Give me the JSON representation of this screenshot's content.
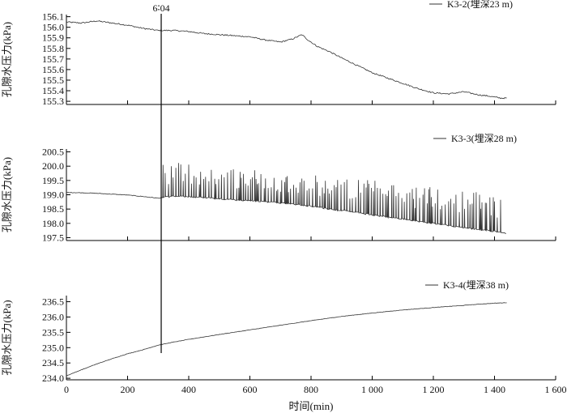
{
  "chart_data": [
    {
      "type": "line",
      "ylabel": "孔隙水压力(kPa)",
      "legend": "K3-2(埋深23 m)",
      "ylim": [
        155.27,
        156.12
      ],
      "yticks": [
        155.3,
        155.4,
        155.5,
        155.6,
        155.7,
        155.8,
        155.9,
        156.0,
        156.1
      ],
      "ytick_labels": [
        "155.3",
        "155.4",
        "155.5",
        "155.6",
        "155.7",
        "155.8",
        "155.9",
        "156.0",
        "156.1"
      ],
      "series": [
        {
          "line_color": "#333333",
          "x": [
            0,
            50,
            100,
            150,
            200,
            250,
            300,
            350,
            400,
            450,
            500,
            550,
            600,
            650,
            700,
            740,
            770,
            790,
            820,
            860,
            900,
            950,
            1000,
            1050,
            1100,
            1150,
            1200,
            1250,
            1300,
            1350,
            1380,
            1400,
            1420,
            1440
          ],
          "y": [
            156.05,
            156.04,
            156.06,
            156.04,
            156.02,
            155.99,
            155.97,
            155.97,
            155.96,
            155.94,
            155.93,
            155.92,
            155.91,
            155.88,
            155.86,
            155.89,
            155.93,
            155.88,
            155.82,
            155.77,
            155.71,
            155.64,
            155.57,
            155.52,
            155.47,
            155.42,
            155.38,
            155.37,
            155.39,
            155.36,
            155.35,
            155.34,
            155.33,
            155.33
          ]
        }
      ]
    },
    {
      "type": "line",
      "ylabel": "孔隙水压力(kPa)",
      "legend": "K3-3(埋深28 m)",
      "ylim": [
        197.4,
        200.6
      ],
      "yticks": [
        197.5,
        198.0,
        198.5,
        199.0,
        199.5,
        200.0,
        200.5
      ],
      "ytick_labels": [
        "197.5",
        "198.0",
        "198.5",
        "199.0",
        "199.5",
        "200.0",
        "200.5"
      ],
      "series": [
        {
          "line_color": "#333333",
          "baseline_x": [
            0,
            50,
            100,
            150,
            200,
            250,
            300,
            350,
            400,
            450,
            500,
            550,
            600,
            650,
            700,
            750,
            800,
            850,
            900,
            950,
            1000,
            1050,
            1100,
            1150,
            1200,
            1250,
            1300,
            1350,
            1400,
            1440
          ],
          "baseline_y": [
            199.08,
            199.07,
            199.05,
            199.02,
            198.99,
            198.94,
            198.88,
            198.95,
            198.93,
            198.9,
            198.86,
            198.82,
            198.8,
            198.76,
            198.72,
            198.66,
            198.6,
            198.52,
            198.45,
            198.38,
            198.3,
            198.22,
            198.15,
            198.07,
            198.0,
            197.92,
            197.85,
            197.78,
            197.72,
            197.65
          ],
          "spikes_start": 315,
          "spikes_end": 1420,
          "spike_top_start": 200.2,
          "spike_top_end": 199.1
        }
      ]
    },
    {
      "type": "line",
      "ylabel": "孔隙水压力(kPa)",
      "legend": "K3-4(埋深38 m)",
      "ylim": [
        233.95,
        236.7
      ],
      "yticks": [
        234.0,
        234.5,
        235.0,
        235.5,
        236.0,
        236.5
      ],
      "ytick_labels": [
        "234.0",
        "234.5",
        "235.0",
        "235.5",
        "236.0",
        "236.5"
      ],
      "series": [
        {
          "line_color": "#333333",
          "x": [
            0,
            50,
            100,
            150,
            200,
            250,
            300,
            350,
            400,
            500,
            600,
            700,
            800,
            900,
            1000,
            1100,
            1200,
            1300,
            1350,
            1400,
            1440
          ],
          "y": [
            234.08,
            234.28,
            234.47,
            234.64,
            234.8,
            234.93,
            235.08,
            235.18,
            235.27,
            235.43,
            235.58,
            235.73,
            235.88,
            236.02,
            236.13,
            236.23,
            236.31,
            236.38,
            236.42,
            236.45,
            236.47
          ]
        }
      ]
    },
    {
      "type": "axis",
      "xlabel": "时间(min)",
      "xlim": [
        0,
        1600
      ],
      "xticks": [
        0,
        200,
        400,
        600,
        800,
        1000,
        1200,
        1400,
        1600
      ],
      "xtick_labels": [
        "0",
        "200",
        "400",
        "600",
        "800",
        "1 000",
        "1 200",
        "1 400",
        "1 600"
      ]
    },
    {
      "type": "annotation",
      "label": "6∶04",
      "x": 310
    }
  ]
}
